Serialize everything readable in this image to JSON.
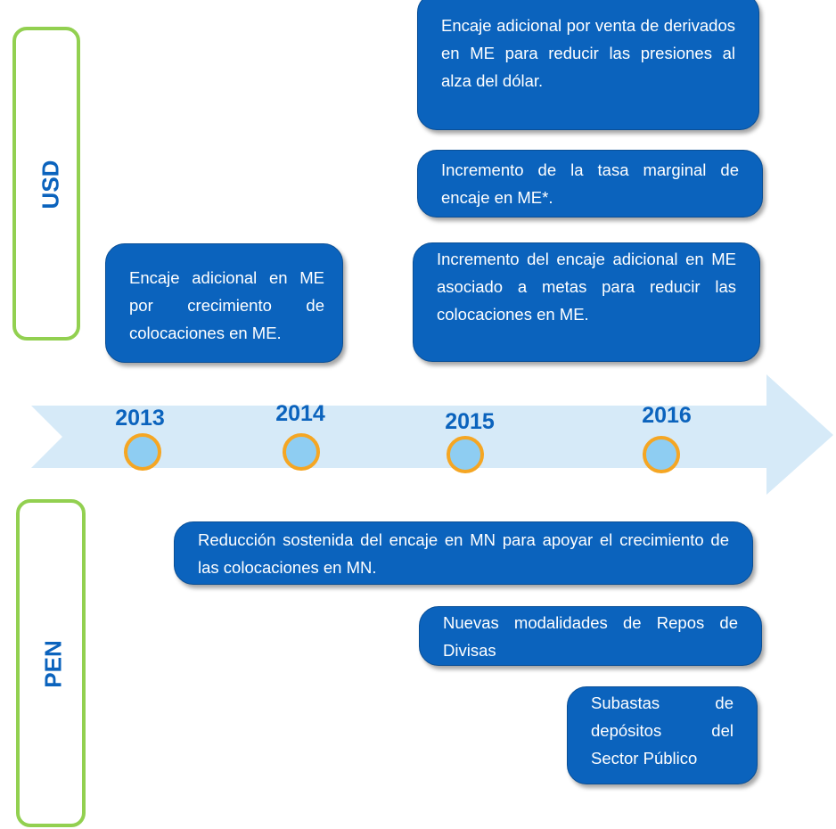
{
  "sides": {
    "usd": "USD",
    "pen": "PEN"
  },
  "years": [
    "2013",
    "2014",
    "2015",
    "2016"
  ],
  "boxes": [
    {
      "text": "Encaje adicional por  venta de derivados en ME para reducir las presiones al alza del dólar."
    },
    {
      "text": "Incremento de la tasa marginal de encaje en ME*."
    },
    {
      "text": "Incremento del encaje adicional en ME asociado a metas para reducir las colocaciones en ME."
    },
    {
      "text": "Encaje adicional en ME por crecimiento de colocaciones en ME."
    },
    {
      "text": "Reducción  sostenida del encaje en MN para apoyar el crecimiento de las colocaciones en MN."
    },
    {
      "text": "Nuevas modalidades de Repos de Divisas"
    },
    {
      "text": "Subastas de depósitos del Sector Público"
    }
  ]
}
